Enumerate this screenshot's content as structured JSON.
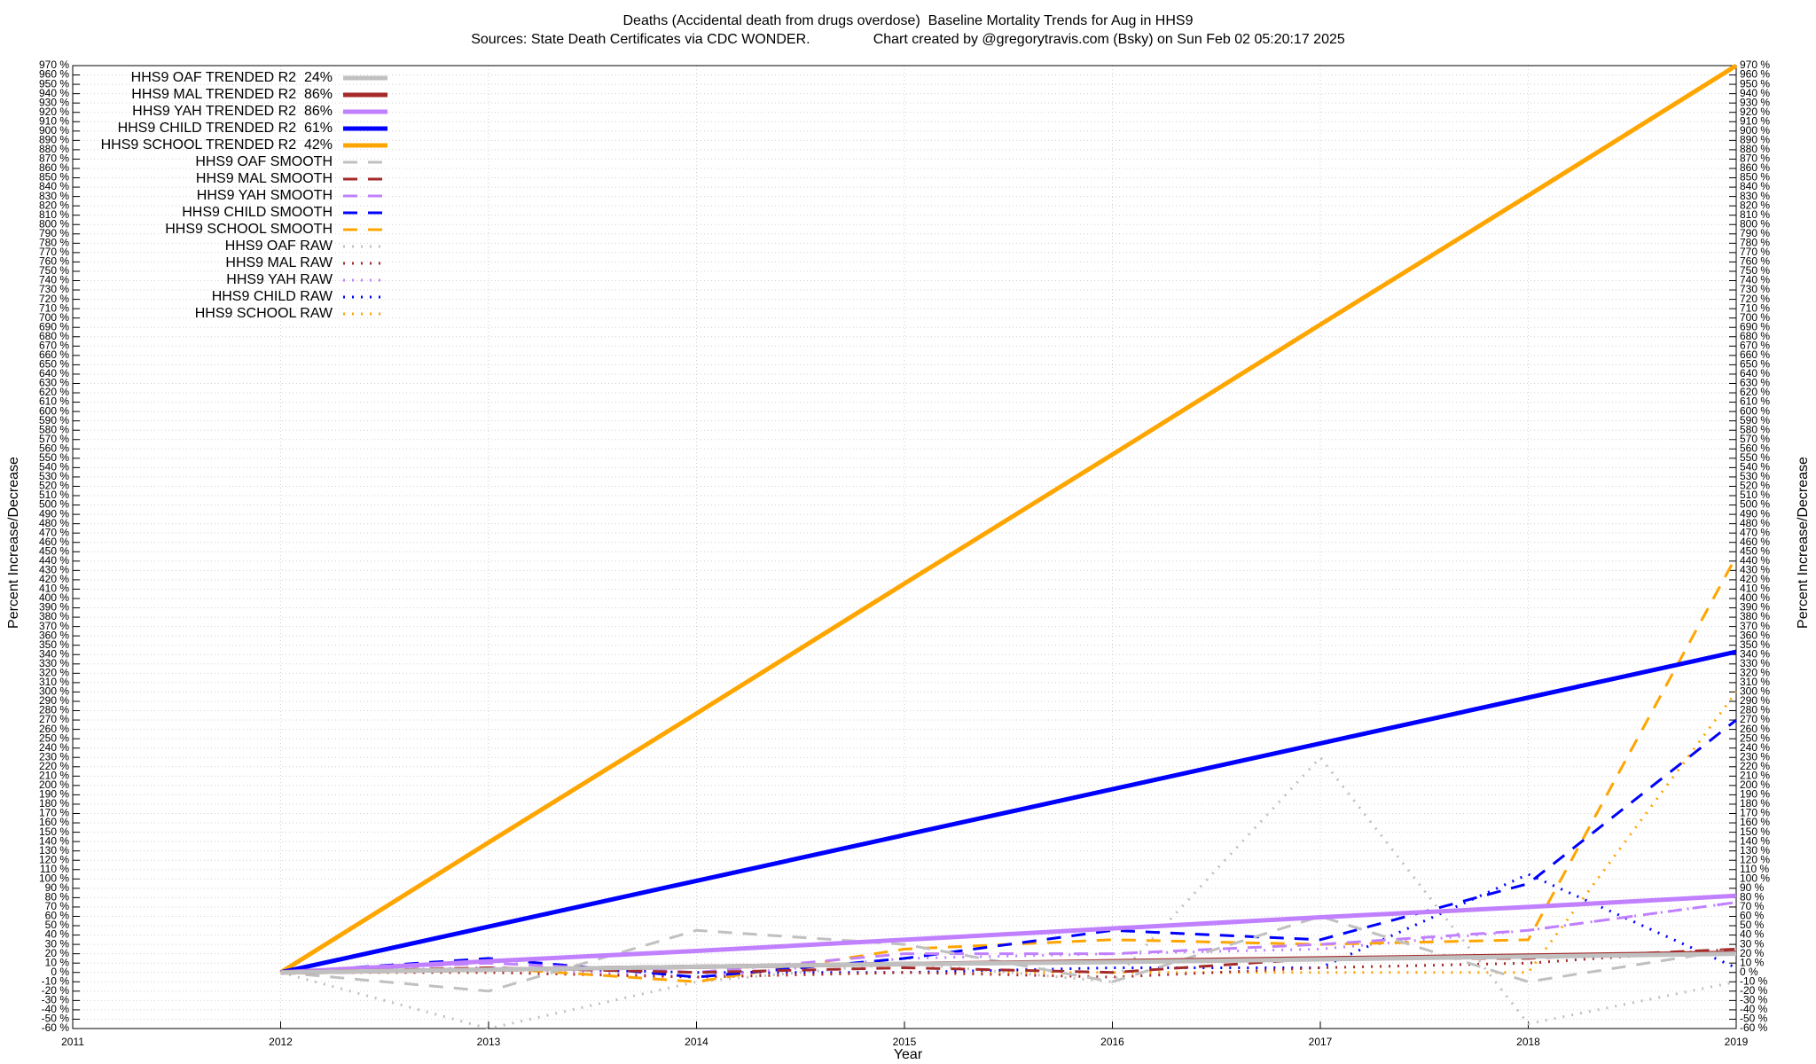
{
  "chart_data": {
    "type": "line",
    "title": "Deaths (Accidental death from drugs overdose)  Baseline Mortality Trends for Aug in HHS9",
    "subtitle": "Sources: State Death Certificates via CDC WONDER.                Chart created by @gregorytravis.com (Bsky) on Sun Feb 02 05:20:17 2025",
    "x_label": "Year",
    "y_label": "Percent Increase/Decrease",
    "x": [
      2012,
      2013,
      2014,
      2015,
      2016,
      2017,
      2018,
      2019
    ],
    "xlim": [
      2011,
      2019
    ],
    "xticks": [
      2011,
      2012,
      2013,
      2014,
      2015,
      2016,
      2017,
      2018,
      2019
    ],
    "ylim": [
      -60,
      970
    ],
    "yticks": [
      {
        "value": -60,
        "label": "-60 %"
      },
      {
        "value": -50,
        "label": "-50 %"
      },
      {
        "value": -40,
        "label": "-40 %"
      },
      {
        "value": -30,
        "label": "-30 %"
      },
      {
        "value": -20,
        "label": "-20 %"
      },
      {
        "value": -10,
        "label": "-10 %"
      },
      {
        "value": 0,
        "label": "0 %"
      },
      {
        "value": 10,
        "label": "10 %"
      },
      {
        "value": 20,
        "label": "20 %"
      },
      {
        "value": 30,
        "label": "30 %"
      },
      {
        "value": 40,
        "label": "40 %"
      },
      {
        "value": 50,
        "label": "50 %"
      },
      {
        "value": 60,
        "label": "60 %"
      },
      {
        "value": 70,
        "label": "70 %"
      },
      {
        "value": 80,
        "label": "80 %"
      },
      {
        "value": 90,
        "label": "90 %"
      },
      {
        "value": 100,
        "label": "100 %"
      },
      {
        "value": 110,
        "label": "110 %"
      },
      {
        "value": 120,
        "label": "120 %"
      },
      {
        "value": 130,
        "label": "130 %"
      },
      {
        "value": 140,
        "label": "140 %"
      },
      {
        "value": 150,
        "label": "150 %"
      },
      {
        "value": 160,
        "label": "160 %"
      },
      {
        "value": 170,
        "label": "170 %"
      },
      {
        "value": 180,
        "label": "180 %"
      },
      {
        "value": 190,
        "label": "190 %"
      },
      {
        "value": 200,
        "label": "200 %"
      },
      {
        "value": 210,
        "label": "210 %"
      },
      {
        "value": 220,
        "label": "220 %"
      },
      {
        "value": 230,
        "label": "230 %"
      },
      {
        "value": 240,
        "label": "240 %"
      },
      {
        "value": 250,
        "label": "250 %"
      },
      {
        "value": 260,
        "label": "260 %"
      },
      {
        "value": 270,
        "label": "270 %"
      },
      {
        "value": 280,
        "label": "280 %"
      },
      {
        "value": 290,
        "label": "290 %"
      },
      {
        "value": 300,
        "label": "300 %"
      },
      {
        "value": 310,
        "label": "310 %"
      },
      {
        "value": 320,
        "label": "320 %"
      },
      {
        "value": 330,
        "label": "330 %"
      },
      {
        "value": 340,
        "label": "340 %"
      },
      {
        "value": 350,
        "label": "350 %"
      },
      {
        "value": 360,
        "label": "360 %"
      },
      {
        "value": 370,
        "label": "370 %"
      },
      {
        "value": 380,
        "label": "380 %"
      },
      {
        "value": 390,
        "label": "390 %"
      },
      {
        "value": 400,
        "label": "400 %"
      },
      {
        "value": 410,
        "label": "410 %"
      },
      {
        "value": 420,
        "label": "420 %"
      },
      {
        "value": 430,
        "label": "430 %"
      },
      {
        "value": 440,
        "label": "440 %"
      },
      {
        "value": 450,
        "label": "450 %"
      },
      {
        "value": 460,
        "label": "460 %"
      },
      {
        "value": 470,
        "label": "470 %"
      },
      {
        "value": 480,
        "label": "480 %"
      },
      {
        "value": 490,
        "label": "490 %"
      },
      {
        "value": 500,
        "label": "500 %"
      },
      {
        "value": 510,
        "label": "510 %"
      },
      {
        "value": 520,
        "label": "520 %"
      },
      {
        "value": 530,
        "label": "530 %"
      },
      {
        "value": 540,
        "label": "540 %"
      },
      {
        "value": 550,
        "label": "550 %"
      },
      {
        "value": 560,
        "label": "560 %"
      },
      {
        "value": 570,
        "label": "570 %"
      },
      {
        "value": 580,
        "label": "580 %"
      },
      {
        "value": 590,
        "label": "590 %"
      },
      {
        "value": 600,
        "label": "600 %"
      },
      {
        "value": 610,
        "label": "610 %"
      },
      {
        "value": 620,
        "label": "620 %"
      },
      {
        "value": 630,
        "label": "630 %"
      },
      {
        "value": 640,
        "label": "640 %"
      },
      {
        "value": 650,
        "label": "650 %"
      },
      {
        "value": 660,
        "label": "660 %"
      },
      {
        "value": 670,
        "label": "670 %"
      },
      {
        "value": 680,
        "label": "680 %"
      },
      {
        "value": 690,
        "label": "690 %"
      },
      {
        "value": 700,
        "label": "700 %"
      },
      {
        "value": 710,
        "label": "710 %"
      },
      {
        "value": 720,
        "label": "720 %"
      },
      {
        "value": 730,
        "label": "730 %"
      },
      {
        "value": 740,
        "label": "740 %"
      },
      {
        "value": 750,
        "label": "750 %"
      },
      {
        "value": 760,
        "label": "760 %"
      },
      {
        "value": 770,
        "label": "770 %"
      },
      {
        "value": 780,
        "label": "780 %"
      },
      {
        "value": 790,
        "label": "790 %"
      },
      {
        "value": 800,
        "label": "800 %"
      },
      {
        "value": 810,
        "label": "810 %"
      },
      {
        "value": 820,
        "label": "820 %"
      },
      {
        "value": 830,
        "label": "830 %"
      },
      {
        "value": 840,
        "label": "840 %"
      },
      {
        "value": 850,
        "label": "850 %"
      },
      {
        "value": 860,
        "label": "860 %"
      },
      {
        "value": 870,
        "label": "870 %"
      },
      {
        "value": 880,
        "label": "880 %"
      },
      {
        "value": 890,
        "label": "890 %"
      },
      {
        "value": 900,
        "label": "900 %"
      },
      {
        "value": 910,
        "label": "910 %"
      },
      {
        "value": 920,
        "label": "920 %"
      },
      {
        "value": 930,
        "label": "930 %"
      },
      {
        "value": 940,
        "label": "940 %"
      },
      {
        "value": 950,
        "label": "950 %"
      },
      {
        "value": 960,
        "label": "960 %"
      },
      {
        "value": 970,
        "label": "970 %"
      }
    ],
    "grid": true,
    "legend": "upper left",
    "series": [
      {
        "name": "HHS9 OAF TRENDED R2  24%",
        "color": "#c0c0c0",
        "dash": "solid",
        "values": [
          0,
          3,
          6,
          9,
          11,
          14,
          17,
          20
        ]
      },
      {
        "name": "HHS9 MAL TRENDED R2  86%",
        "color": "#a52a2a",
        "dash": "solid",
        "values": [
          0,
          3,
          6,
          9,
          12,
          15,
          18,
          21
        ]
      },
      {
        "name": "HHS9 YAH TRENDED R2  86%",
        "color": "#c080ff",
        "dash": "solid",
        "values": [
          0,
          12,
          23,
          35,
          47,
          59,
          70,
          82
        ]
      },
      {
        "name": "HHS9 CHILD TRENDED R2  61%",
        "color": "#0000ff",
        "dash": "solid",
        "values": [
          0,
          49,
          98,
          147,
          196,
          245,
          294,
          343
        ]
      },
      {
        "name": "HHS9 SCHOOL TRENDED R2  42%",
        "color": "#ffa500",
        "dash": "solid",
        "values": [
          0,
          139,
          277,
          416,
          554,
          693,
          831,
          970
        ]
      },
      {
        "name": "HHS9 OAF SMOOTH",
        "color": "#c0c0c0",
        "dash": "dashed",
        "values": [
          0,
          -20,
          45,
          30,
          -10,
          60,
          -10,
          25
        ]
      },
      {
        "name": "HHS9 MAL SMOOTH",
        "color": "#a52a2a",
        "dash": "dashed",
        "values": [
          0,
          5,
          0,
          5,
          0,
          15,
          15,
          25
        ]
      },
      {
        "name": "HHS9 YAH SMOOTH",
        "color": "#c080ff",
        "dash": "dashed",
        "values": [
          0,
          10,
          0,
          20,
          20,
          30,
          45,
          75
        ]
      },
      {
        "name": "HHS9 CHILD SMOOTH",
        "color": "#0000ff",
        "dash": "dashed",
        "values": [
          0,
          15,
          -5,
          15,
          45,
          35,
          95,
          270
        ]
      },
      {
        "name": "HHS9 SCHOOL SMOOTH",
        "color": "#ffa500",
        "dash": "dashed",
        "values": [
          0,
          5,
          -10,
          25,
          35,
          30,
          35,
          445
        ]
      },
      {
        "name": "HHS9 OAF RAW",
        "color": "#c0c0c0",
        "dash": "dotted",
        "values": [
          0,
          -60,
          -10,
          10,
          -10,
          230,
          -55,
          -10
        ]
      },
      {
        "name": "HHS9 MAL RAW",
        "color": "#a52a2a",
        "dash": "dotted",
        "values": [
          0,
          0,
          -5,
          0,
          -5,
          5,
          10,
          25
        ]
      },
      {
        "name": "HHS9 YAH RAW",
        "color": "#c080ff",
        "dash": "dotted",
        "values": [
          0,
          5,
          -5,
          15,
          20,
          25,
          45,
          75
        ]
      },
      {
        "name": "HHS9 CHILD RAW",
        "color": "#0000ff",
        "dash": "dotted",
        "values": [
          0,
          5,
          0,
          0,
          5,
          5,
          105,
          5
        ]
      },
      {
        "name": "HHS9 SCHOOL RAW",
        "color": "#ffa500",
        "dash": "dotted",
        "values": [
          0,
          0,
          -5,
          0,
          0,
          0,
          0,
          300
        ]
      }
    ]
  }
}
